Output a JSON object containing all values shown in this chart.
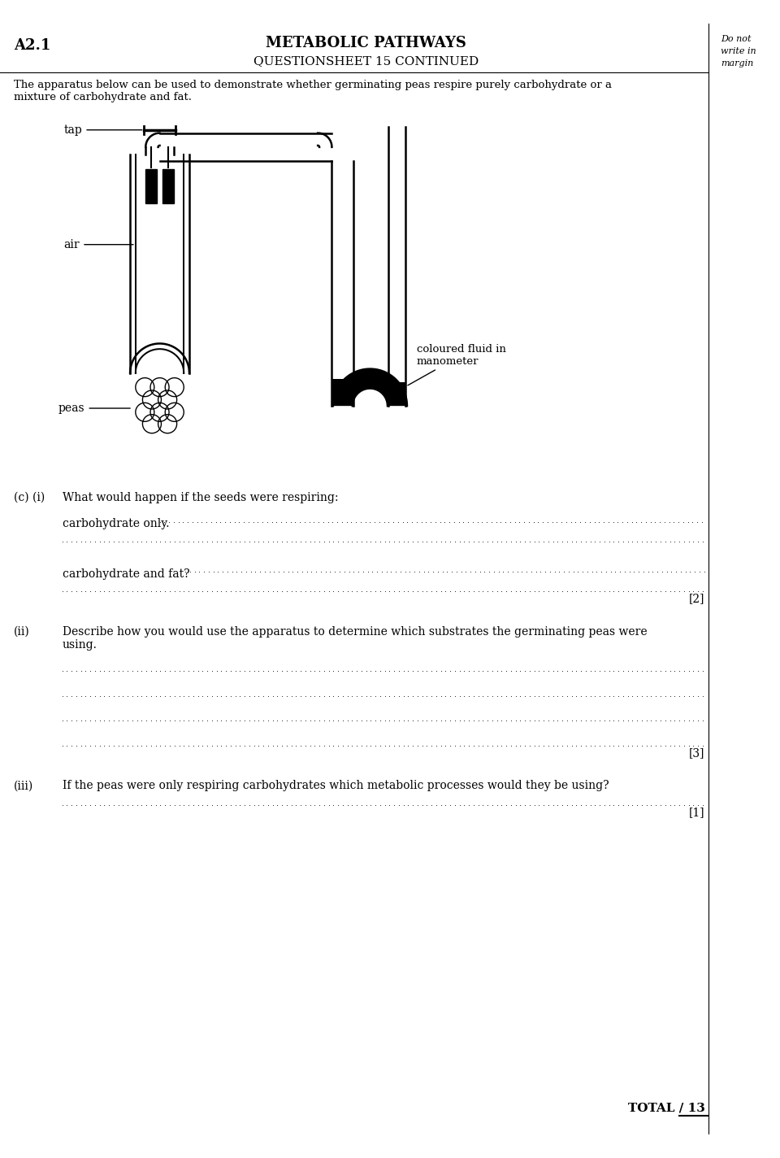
{
  "title_left": "A2.1",
  "title_center": "METABOLIC PATHWAYS",
  "subtitle_center": "QUESTIONSHEET 15 CONTINUED",
  "margin_text": [
    "Do not",
    "write in",
    "margin"
  ],
  "intro_text": "The apparatus below can be used to demonstrate whether germinating peas respire purely carbohydrate or a\nmixture of carbohydrate and fat.",
  "label_tap": "tap",
  "label_air": "air",
  "label_peas": "peas",
  "label_fluid": "coloured fluid in\nmanometer",
  "question_ci": "(c) (i)",
  "question_ci_text": "What would happen if the seeds were respiring:",
  "q_carb_only": "carbohydrate only.",
  "q_carb_fat": "carbohydrate and fat?",
  "mark_2": "[2]",
  "question_cii": "(ii)",
  "question_cii_text": "Describe how you would use the apparatus to determine which substrates the germinating peas were\nusing.",
  "mark_3": "[3]",
  "question_ciii": "(iii)",
  "question_ciii_text": "If the peas were only respiring carbohydrates which metabolic processes would they be using?",
  "mark_1": "[1]",
  "total_text": "TOTAL / 13",
  "bg_color": "#ffffff",
  "text_color": "#000000"
}
